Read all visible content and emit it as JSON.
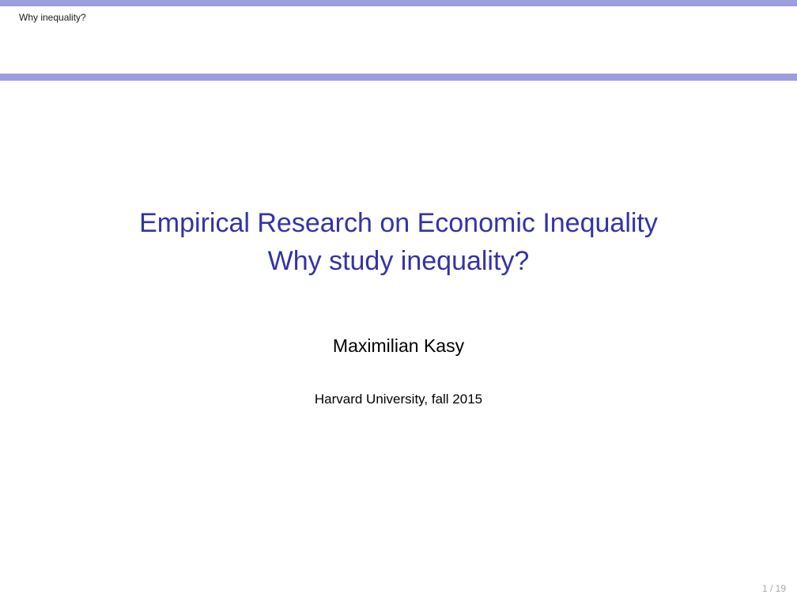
{
  "header": {
    "section_title": "Why inequality?"
  },
  "title": {
    "line1": "Empirical Research on Economic Inequality",
    "line2": "Why study inequality?"
  },
  "author": "Maximilian Kasy",
  "institute": "Harvard University, fall 2015",
  "footer": {
    "page_number": "1 / 19"
  },
  "colors": {
    "accent_bar": "#9c9ee0",
    "title": "#3333a6",
    "page_number": "#a7a7a7"
  }
}
